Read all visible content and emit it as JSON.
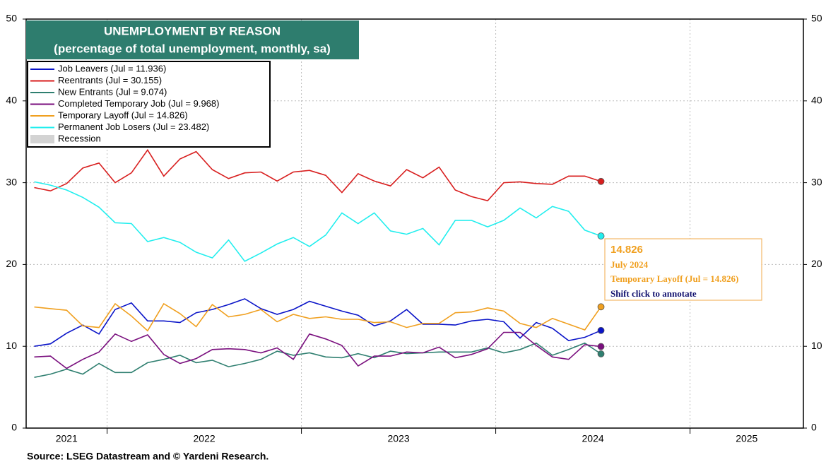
{
  "chart_data": {
    "type": "line",
    "title": "UNEMPLOYMENT BY REASON",
    "subtitle": "(percentage of total unemployment, monthly, sa)",
    "source": "Source: LSEG Datastream and © Yardeni Research.",
    "x": [
      "2021-08",
      "2021-09",
      "2021-10",
      "2021-11",
      "2021-12",
      "2022-01",
      "2022-02",
      "2022-03",
      "2022-04",
      "2022-05",
      "2022-06",
      "2022-07",
      "2022-08",
      "2022-09",
      "2022-10",
      "2022-11",
      "2022-12",
      "2023-01",
      "2023-02",
      "2023-03",
      "2023-04",
      "2023-05",
      "2023-06",
      "2023-07",
      "2023-08",
      "2023-09",
      "2023-10",
      "2023-11",
      "2023-12",
      "2024-01",
      "2024-02",
      "2024-03",
      "2024-04",
      "2024-05",
      "2024-06",
      "2024-07"
    ],
    "xlim": [
      "2021-08",
      "2025-08"
    ],
    "xticks": [
      2021,
      2022,
      2023,
      2024,
      2025
    ],
    "ylim": [
      0,
      50
    ],
    "yticks": [
      0,
      10,
      20,
      30,
      40,
      50
    ],
    "grid": true,
    "legend": "top-left",
    "recession_label": "Recession",
    "series": [
      {
        "name": "Job Leavers (Jul = 11.936)",
        "color": "#0a14c8",
        "values": [
          10.0,
          10.3,
          11.6,
          12.6,
          11.5,
          14.5,
          15.3,
          13.1,
          13.1,
          12.9,
          14.1,
          14.5,
          15.1,
          15.8,
          14.6,
          13.9,
          14.5,
          15.5,
          14.9,
          14.3,
          13.8,
          12.5,
          13.1,
          14.5,
          12.7,
          12.7,
          12.6,
          13.1,
          13.3,
          13.0,
          11.0,
          12.9,
          12.2,
          10.7,
          11.1,
          11.936
        ]
      },
      {
        "name": "Reentrants (Jul = 30.155)",
        "color": "#d81e1e",
        "values": [
          29.4,
          29.0,
          29.9,
          31.8,
          32.4,
          30.0,
          31.2,
          34.0,
          30.8,
          32.9,
          33.8,
          31.6,
          30.5,
          31.2,
          31.3,
          30.2,
          31.3,
          31.5,
          30.9,
          28.8,
          31.1,
          30.2,
          29.6,
          31.6,
          30.6,
          31.9,
          29.1,
          28.3,
          27.8,
          30.0,
          30.1,
          29.9,
          29.8,
          30.8,
          30.8,
          30.155
        ]
      },
      {
        "name": "New Entrants (Jul = 9.074)",
        "color": "#2f7f70",
        "values": [
          6.2,
          6.6,
          7.2,
          6.6,
          7.9,
          6.8,
          6.8,
          8.0,
          8.4,
          8.9,
          8.0,
          8.3,
          7.5,
          7.9,
          8.4,
          9.4,
          8.9,
          9.2,
          8.7,
          8.6,
          9.1,
          8.6,
          9.4,
          9.1,
          9.2,
          9.3,
          9.3,
          9.3,
          9.8,
          9.2,
          9.6,
          10.4,
          8.9,
          9.6,
          10.4,
          9.074
        ]
      },
      {
        "name": "Completed Temporary Job (Jul = 9.968)",
        "color": "#7a0f7e",
        "values": [
          8.7,
          8.8,
          7.3,
          8.4,
          9.3,
          11.5,
          10.6,
          11.4,
          9.0,
          7.9,
          8.5,
          9.6,
          9.7,
          9.6,
          9.2,
          9.8,
          8.4,
          11.5,
          10.9,
          10.1,
          7.6,
          8.8,
          8.8,
          9.3,
          9.2,
          9.9,
          8.6,
          9.0,
          9.7,
          11.7,
          11.7,
          10.1,
          8.7,
          8.4,
          10.2,
          9.968
        ]
      },
      {
        "name": "Temporary Layoff (Jul = 14.826)",
        "color": "#f0a020",
        "values": [
          14.8,
          14.6,
          14.4,
          12.5,
          12.3,
          15.2,
          13.7,
          11.9,
          15.2,
          14.0,
          12.4,
          15.1,
          13.6,
          13.9,
          14.5,
          13.0,
          13.9,
          13.4,
          13.6,
          13.3,
          13.3,
          12.9,
          13.0,
          12.3,
          12.8,
          12.8,
          14.1,
          14.2,
          14.7,
          14.3,
          12.8,
          12.3,
          13.4,
          12.7,
          12.0,
          14.826
        ]
      },
      {
        "name": "Permanent Job Losers (Jul = 23.482)",
        "color": "#22eeee",
        "values": [
          30.1,
          29.7,
          29.1,
          28.2,
          27.0,
          25.1,
          25.0,
          22.8,
          23.3,
          22.7,
          21.5,
          20.8,
          23.0,
          20.4,
          21.4,
          22.5,
          23.3,
          22.2,
          23.6,
          26.3,
          25.0,
          26.3,
          24.1,
          23.7,
          24.4,
          22.4,
          25.4,
          25.4,
          24.6,
          25.4,
          26.9,
          25.7,
          27.1,
          26.5,
          24.2,
          23.482
        ]
      }
    ],
    "annotation": {
      "value": 14.826,
      "date": "July 2024",
      "series": "Temporary Layoff (Jul = 14.826)",
      "hint": "Shift click to annotate"
    }
  }
}
